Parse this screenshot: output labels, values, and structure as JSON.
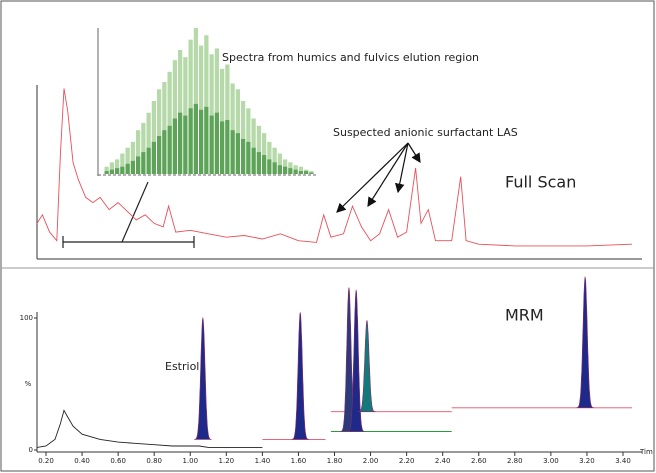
{
  "chart_data": [
    {
      "type": "line",
      "annotations": [
        "Spectra from humics and fulvics elution region",
        "Suspected anionic surfactant LAS",
        "Full Scan"
      ],
      "xlim": [
        0.15,
        3.45
      ],
      "ylim": [
        0,
        100
      ],
      "series": [
        {
          "color": "#e8505a",
          "x": [
            0.15,
            0.18,
            0.22,
            0.26,
            0.28,
            0.3,
            0.32,
            0.35,
            0.38,
            0.42,
            0.46,
            0.5,
            0.55,
            0.6,
            0.65,
            0.7,
            0.75,
            0.8,
            0.85,
            0.88,
            0.92,
            1.0,
            1.1,
            1.2,
            1.3,
            1.4,
            1.5,
            1.6,
            1.7,
            1.74,
            1.78,
            1.85,
            1.9,
            1.95,
            2.0,
            2.05,
            2.1,
            2.15,
            2.2,
            2.25,
            2.28,
            2.32,
            2.36,
            2.45,
            2.5,
            2.53,
            2.6,
            2.8,
            3.0,
            3.2,
            3.45
          ],
          "values": [
            20,
            25,
            15,
            10,
            60,
            98,
            85,
            55,
            45,
            35,
            32,
            35,
            28,
            32,
            27,
            22,
            25,
            20,
            18,
            30,
            15,
            16,
            14,
            12,
            13,
            11,
            14,
            10,
            9,
            25,
            12,
            14,
            30,
            18,
            10,
            14,
            28,
            12,
            15,
            52,
            20,
            28,
            10,
            10,
            47,
            10,
            8,
            7,
            7,
            7,
            8
          ]
        }
      ]
    },
    {
      "type": "bar",
      "ylim": [
        0,
        100
      ],
      "series": [
        {
          "color": "#a8d29a",
          "values": [
            5,
            8,
            10,
            14,
            18,
            22,
            30,
            35,
            42,
            50,
            58,
            63,
            70,
            78,
            85,
            80,
            92,
            100,
            88,
            95,
            82,
            86,
            72,
            75,
            62,
            58,
            50,
            45,
            38,
            33,
            28,
            22,
            18,
            14,
            10,
            8,
            6,
            5,
            3,
            2
          ]
        },
        {
          "color": "#4e9a4a",
          "values": [
            2,
            3,
            4,
            5,
            7,
            9,
            12,
            15,
            18,
            22,
            26,
            30,
            33,
            38,
            42,
            40,
            45,
            48,
            44,
            46,
            40,
            42,
            36,
            37,
            30,
            28,
            24,
            22,
            18,
            15,
            13,
            10,
            8,
            6,
            5,
            4,
            3,
            2,
            2,
            1
          ]
        }
      ]
    },
    {
      "type": "line",
      "annotations": [
        "MRM",
        "Estriol"
      ],
      "x_label": "Tim",
      "y_label": "%",
      "xlim": [
        0.15,
        3.45
      ],
      "ylim": [
        0,
        135
      ],
      "yticks": [
        0,
        100
      ],
      "xticks": [
        {
          "value": 0.2,
          "label": "0.20"
        },
        {
          "value": 0.4,
          "label": "0.40"
        },
        {
          "value": 0.6,
          "label": "0.60"
        },
        {
          "value": 0.8,
          "label": "0.80"
        },
        {
          "value": 1.0,
          "label": "1.00"
        },
        {
          "value": 1.2,
          "label": "1.20"
        },
        {
          "value": 1.4,
          "label": "1.40"
        },
        {
          "value": 1.6,
          "label": "1.60"
        },
        {
          "value": 1.8,
          "label": "1.80"
        },
        {
          "value": 2.0,
          "label": "2.00"
        },
        {
          "value": 2.2,
          "label": "2.20"
        },
        {
          "value": 2.4,
          "label": "2.40"
        },
        {
          "value": 2.6,
          "label": "2.60"
        },
        {
          "value": 2.8,
          "label": "2.80"
        },
        {
          "value": 3.0,
          "label": "3.00"
        },
        {
          "value": 3.2,
          "label": "3.20"
        },
        {
          "value": 3.4,
          "label": "3.40"
        }
      ],
      "series": [
        {
          "color": "#222222",
          "x": [
            0.15,
            0.2,
            0.25,
            0.28,
            0.3,
            0.32,
            0.35,
            0.4,
            0.5,
            0.6,
            0.7,
            0.8,
            0.9,
            1.0,
            1.05,
            1.1,
            1.2,
            1.3,
            1.4
          ],
          "values": [
            2,
            3,
            8,
            20,
            30,
            25,
            18,
            12,
            8,
            6,
            5,
            4,
            3,
            3,
            3,
            2,
            2,
            2,
            2
          ]
        },
        {
          "color": "#e0506a",
          "x": [
            1.4,
            1.75
          ],
          "values": [
            8,
            8
          ]
        },
        {
          "color": "#e0506a",
          "x": [
            1.78,
            2.45
          ],
          "values": [
            29,
            29
          ]
        },
        {
          "color": "#2a9a3a",
          "x": [
            1.78,
            2.45
          ],
          "values": [
            14,
            14
          ]
        },
        {
          "color": "#e0506a",
          "x": [
            2.45,
            3.45
          ],
          "values": [
            32,
            32
          ]
        }
      ],
      "peaks": {
        "x": [
          1.07,
          1.61,
          1.88,
          1.92,
          1.98,
          3.19
        ],
        "values": [
          100,
          104,
          123,
          121,
          98,
          131
        ],
        "baselines": [
          8,
          8,
          14,
          14,
          29,
          32
        ],
        "colors": [
          "#1e2a8a",
          "#1e2a8a",
          "#2a3a7a",
          "#1e2a8a",
          "#127a7a",
          "#1e2a8a"
        ]
      }
    }
  ]
}
